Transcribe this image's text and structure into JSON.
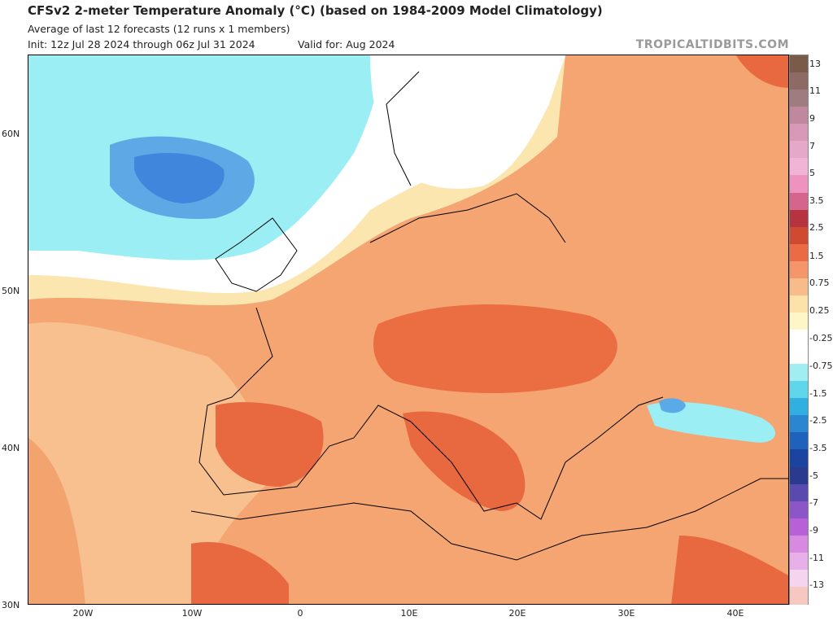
{
  "header": {
    "title": "CFSv2 2-meter Temperature Anomaly (°C) (based on 1984-2009 Model Climatology)",
    "subtitle": "Average of last 12 forecasts (12 runs x 1 members)",
    "init": "Init: 12z Jul 28 2024 through 06z Jul 31 2024",
    "valid": "Valid for: Aug 2024",
    "brand": "TROPICALTIDBITS.COM"
  },
  "axes": {
    "lat_labels": [
      "60N",
      "50N",
      "40N",
      "30N"
    ],
    "lon_labels": [
      "20W",
      "10W",
      "0",
      "10E",
      "20E",
      "30E",
      "40E"
    ]
  },
  "colorbar": {
    "labels": [
      "13",
      "11",
      "9",
      "7",
      "5",
      "3.5",
      "2.5",
      "1.5",
      "0.75",
      "0.25",
      "-0.25",
      "-0.75",
      "-1.5",
      "-2.5",
      "-3.5",
      "-5",
      "-7",
      "-9",
      "-11",
      "-13"
    ],
    "colors": [
      "#7a5a48",
      "#8e6a64",
      "#9e7c80",
      "#c0889e",
      "#d898b8",
      "#e6a8c8",
      "#f2b4d6",
      "#ee93c0",
      "#d6658e",
      "#b53440",
      "#d04a32",
      "#ea6b44",
      "#f4956a",
      "#f8bc8a",
      "#fce2a8",
      "#fff6c8",
      "#ffffff",
      "#ffffff",
      "#a0eef2",
      "#60d6ec",
      "#30b0e0",
      "#2a86d0",
      "#1f62bb",
      "#1b44a0",
      "#2a3a8e",
      "#5a4ab0",
      "#8c56c8",
      "#b860d8",
      "#d88ae0",
      "#e8b0e8",
      "#f4d4ee",
      "#f6c8c0"
    ]
  },
  "map": {
    "land_color": "#f2a36e",
    "ocean_color": "#f8c896",
    "cold_color": "#88e0f0",
    "deep_cold_color": "#5aaae8",
    "hot_color": "#e8683f"
  }
}
